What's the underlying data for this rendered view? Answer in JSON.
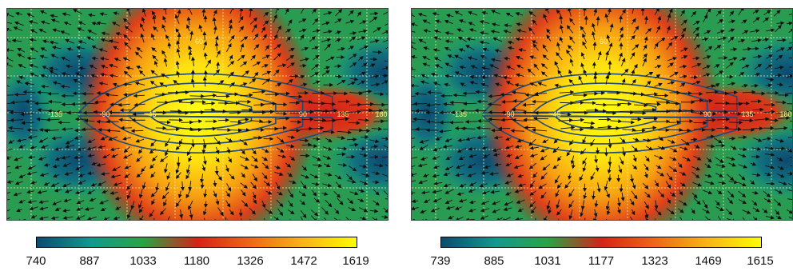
{
  "chart_data": [
    {
      "type": "heatmap",
      "colormap": [
        "#0d4a6e",
        "#0f9b8e",
        "#27a447",
        "#d62219",
        "#f29615",
        "#ffff00"
      ],
      "colorbar_ticks": [
        "740",
        "887",
        "1033",
        "1180",
        "1326",
        "1472",
        "1619"
      ],
      "vmin": 740,
      "vmax": 1619,
      "map_labels": [
        "-135",
        "-90",
        "-45",
        "90",
        "135",
        "180",
        "60"
      ],
      "overlays": [
        "wind vectors",
        "contours"
      ],
      "grid": true
    },
    {
      "type": "heatmap",
      "colormap": [
        "#0d4a6e",
        "#0f9b8e",
        "#27a447",
        "#d62219",
        "#f29615",
        "#ffff00"
      ],
      "colorbar_ticks": [
        "739",
        "885",
        "1031",
        "1177",
        "1323",
        "1469",
        "1615"
      ],
      "vmin": 739,
      "vmax": 1615,
      "map_labels": [
        "-135",
        "-90",
        "-45",
        "90",
        "135",
        "180",
        "60"
      ],
      "overlays": [
        "wind vectors",
        "contours"
      ],
      "grid": true
    }
  ]
}
